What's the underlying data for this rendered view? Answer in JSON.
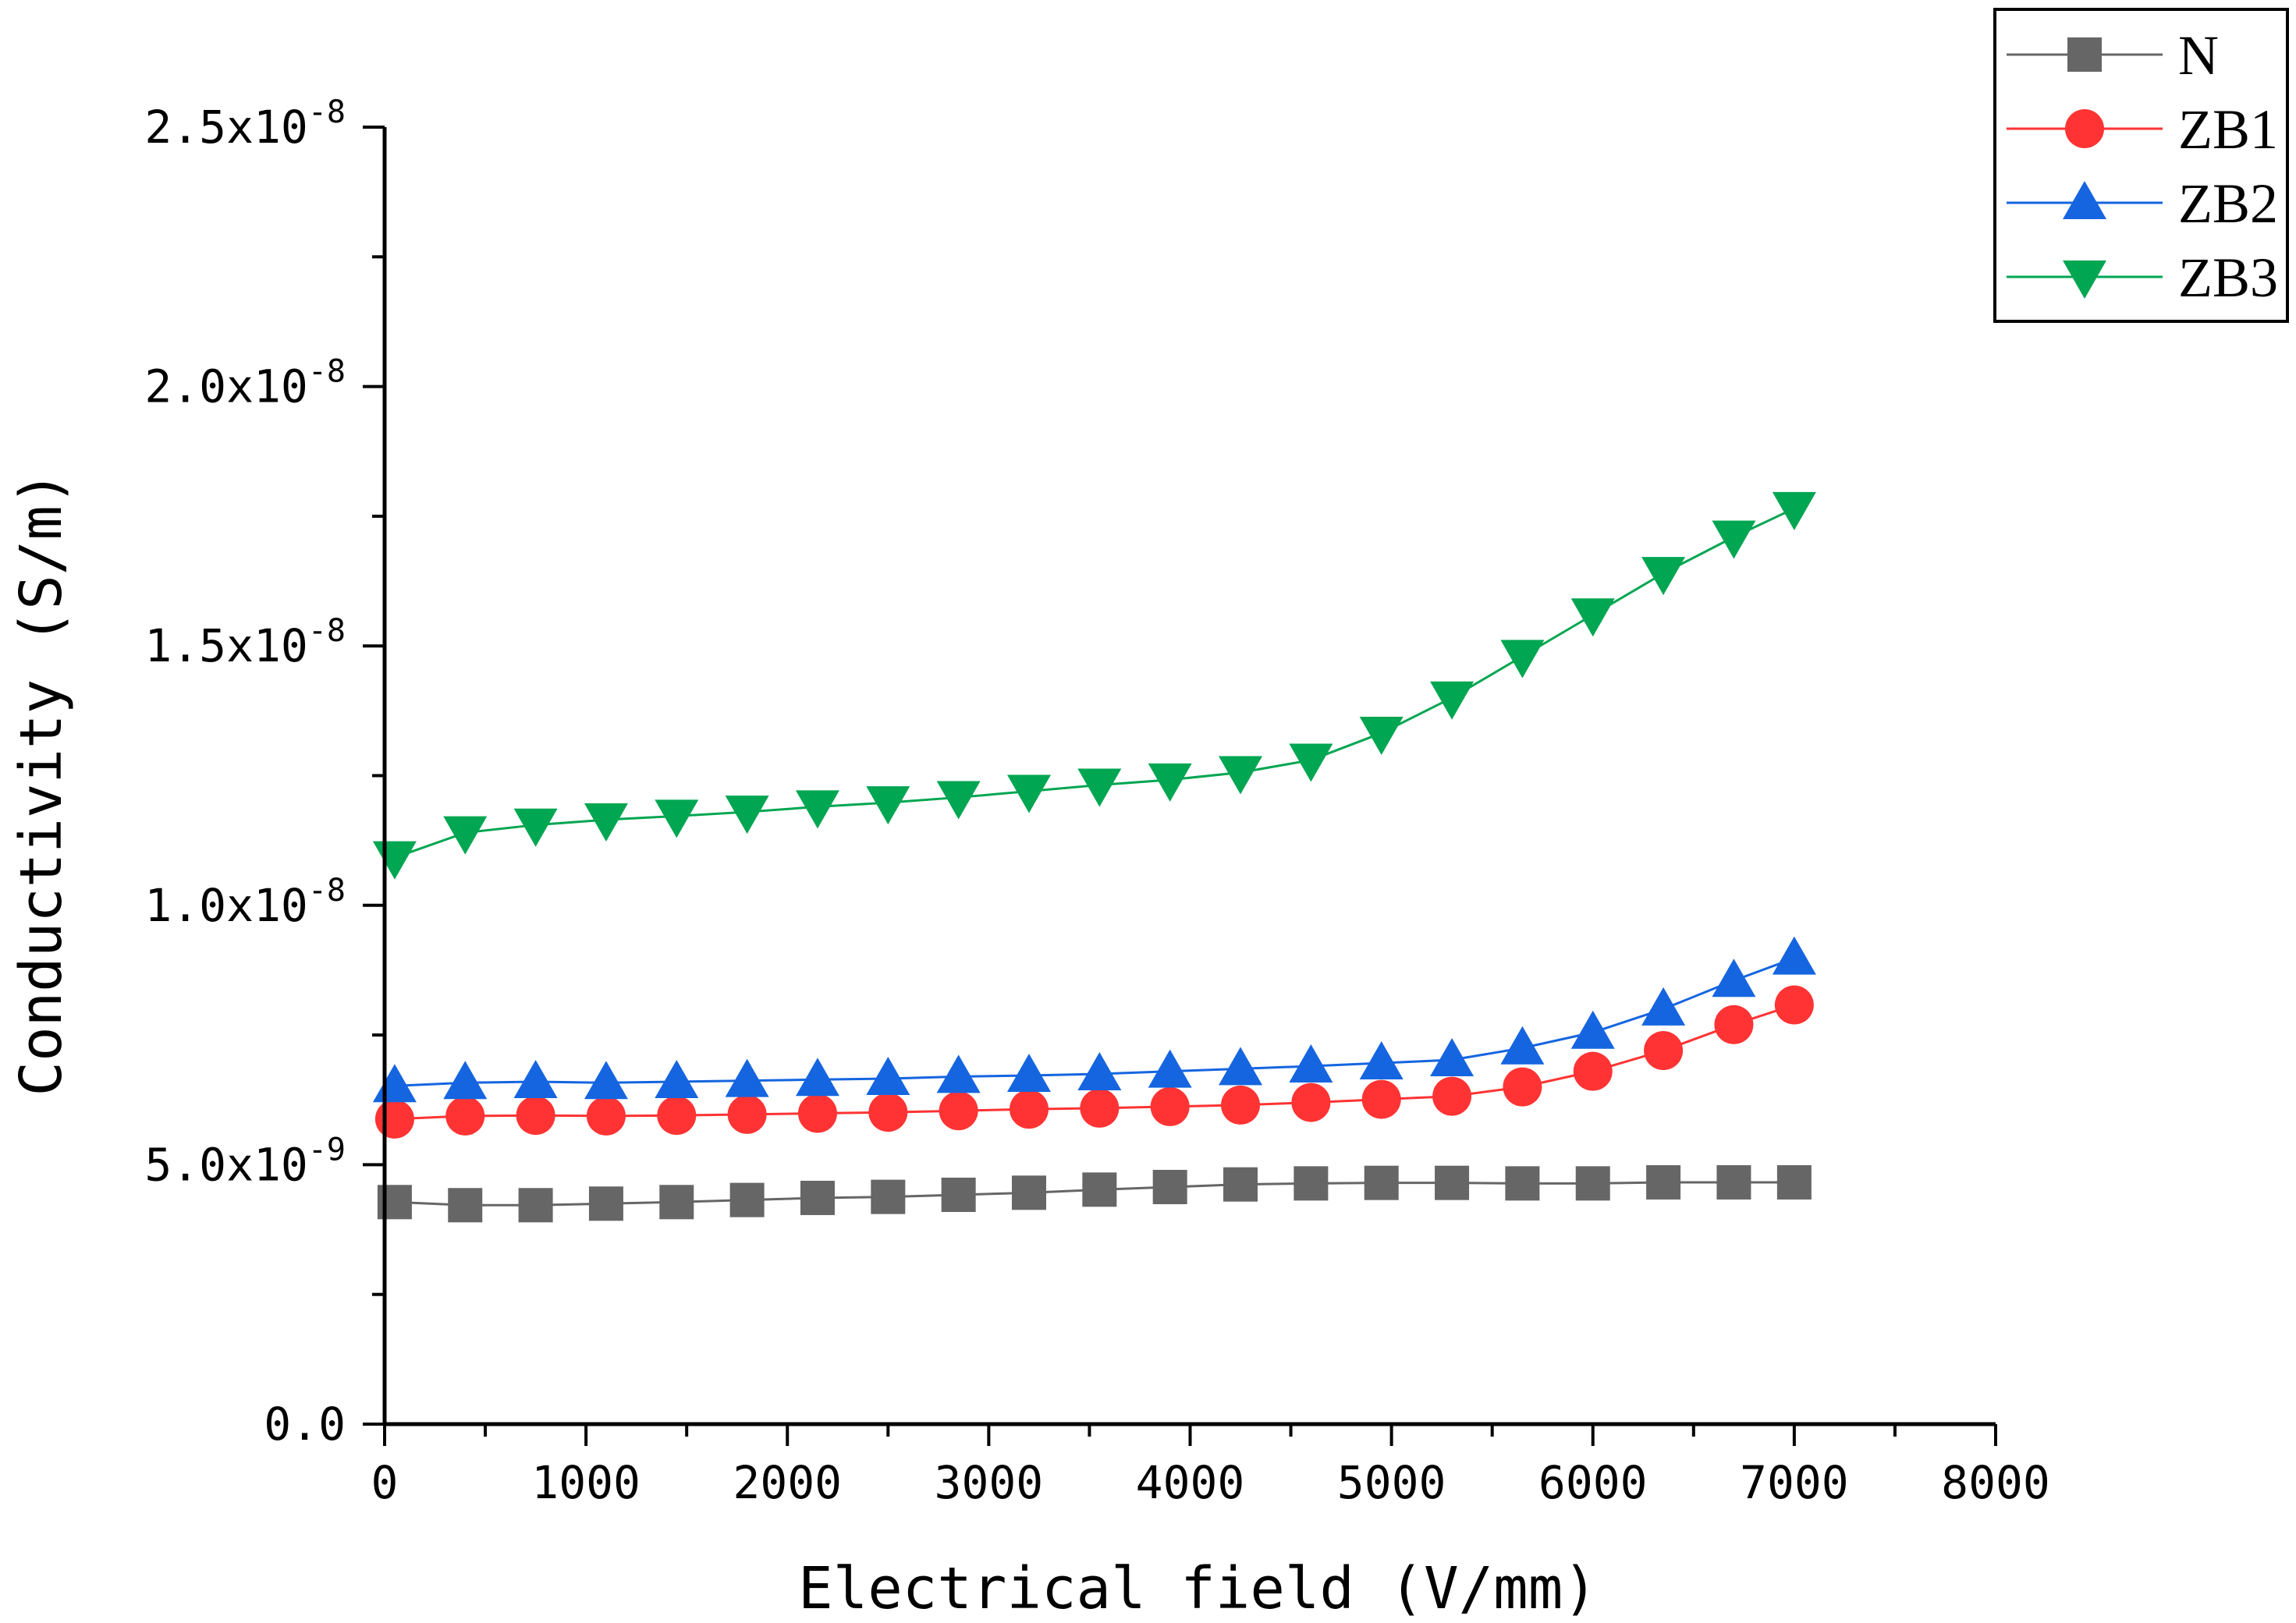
{
  "chart_data": {
    "type": "line",
    "title": "",
    "xlabel": "Electrical field (V/mm)",
    "ylabel": "Conductivity  (S/m)",
    "xlim": [
      0,
      8000
    ],
    "ylim": [
      0,
      2.5e-08
    ],
    "x_ticks": [
      {
        "value": 0,
        "label": "0"
      },
      {
        "value": 1000,
        "label": "1000"
      },
      {
        "value": 2000,
        "label": "2000"
      },
      {
        "value": 3000,
        "label": "3000"
      },
      {
        "value": 4000,
        "label": "4000"
      },
      {
        "value": 5000,
        "label": "5000"
      },
      {
        "value": 6000,
        "label": "6000"
      },
      {
        "value": 7000,
        "label": "7000"
      },
      {
        "value": 8000,
        "label": "8000"
      }
    ],
    "y_ticks": [
      {
        "value": 0,
        "label": "0.0",
        "exp": ""
      },
      {
        "value": 5e-09,
        "label": "5.0x10",
        "exp": "-9"
      },
      {
        "value": 1e-08,
        "label": "1.0x10",
        "exp": "-8"
      },
      {
        "value": 1.5e-08,
        "label": "1.5x10",
        "exp": "-8"
      },
      {
        "value": 2e-08,
        "label": "2.0x10",
        "exp": "-8"
      },
      {
        "value": 2.5e-08,
        "label": "2.5x10",
        "exp": "-8"
      }
    ],
    "grid": false,
    "legend_position": "top-right",
    "x": [
      50,
      400,
      750,
      1100,
      1450,
      1800,
      2150,
      2500,
      2850,
      3200,
      3550,
      3900,
      4250,
      4600,
      4950,
      5300,
      5650,
      6000,
      6350,
      6700,
      7000
    ],
    "series": [
      {
        "name": "N",
        "color": "#666666",
        "marker": "square",
        "values": [
          4.28e-09,
          4.22e-09,
          4.22e-09,
          4.25e-09,
          4.28e-09,
          4.32e-09,
          4.36e-09,
          4.38e-09,
          4.42e-09,
          4.46e-09,
          4.52e-09,
          4.57e-09,
          4.62e-09,
          4.64e-09,
          4.65e-09,
          4.65e-09,
          4.64e-09,
          4.64e-09,
          4.66e-09,
          4.66e-09,
          4.66e-09
        ]
      },
      {
        "name": "ZB1",
        "color": "#ff3333",
        "marker": "circle",
        "values": [
          5.88e-09,
          5.94e-09,
          5.95e-09,
          5.94e-09,
          5.95e-09,
          5.97e-09,
          5.99e-09,
          6.01e-09,
          6.04e-09,
          6.07e-09,
          6.09e-09,
          6.12e-09,
          6.15e-09,
          6.2e-09,
          6.26e-09,
          6.32e-09,
          6.5e-09,
          6.8e-09,
          7.2e-09,
          7.7e-09,
          8.08e-09
        ]
      },
      {
        "name": "ZB2",
        "color": "#1565e0",
        "marker": "triangle-up",
        "values": [
          6.52e-09,
          6.58e-09,
          6.6e-09,
          6.58e-09,
          6.6e-09,
          6.62e-09,
          6.64e-09,
          6.66e-09,
          6.7e-09,
          6.72e-09,
          6.75e-09,
          6.8e-09,
          6.85e-09,
          6.9e-09,
          6.96e-09,
          7.02e-09,
          7.25e-09,
          7.55e-09,
          8e-09,
          8.55e-09,
          8.98e-09
        ]
      },
      {
        "name": "ZB3",
        "color": "#00a651",
        "marker": "triangle-down",
        "values": [
          1.092e-08,
          1.14e-08,
          1.155e-08,
          1.165e-08,
          1.172e-08,
          1.18e-08,
          1.19e-08,
          1.198e-08,
          1.208e-08,
          1.22e-08,
          1.232e-08,
          1.242e-08,
          1.256e-08,
          1.28e-08,
          1.332e-08,
          1.4e-08,
          1.48e-08,
          1.56e-08,
          1.64e-08,
          1.71e-08,
          1.765e-08
        ]
      }
    ]
  }
}
